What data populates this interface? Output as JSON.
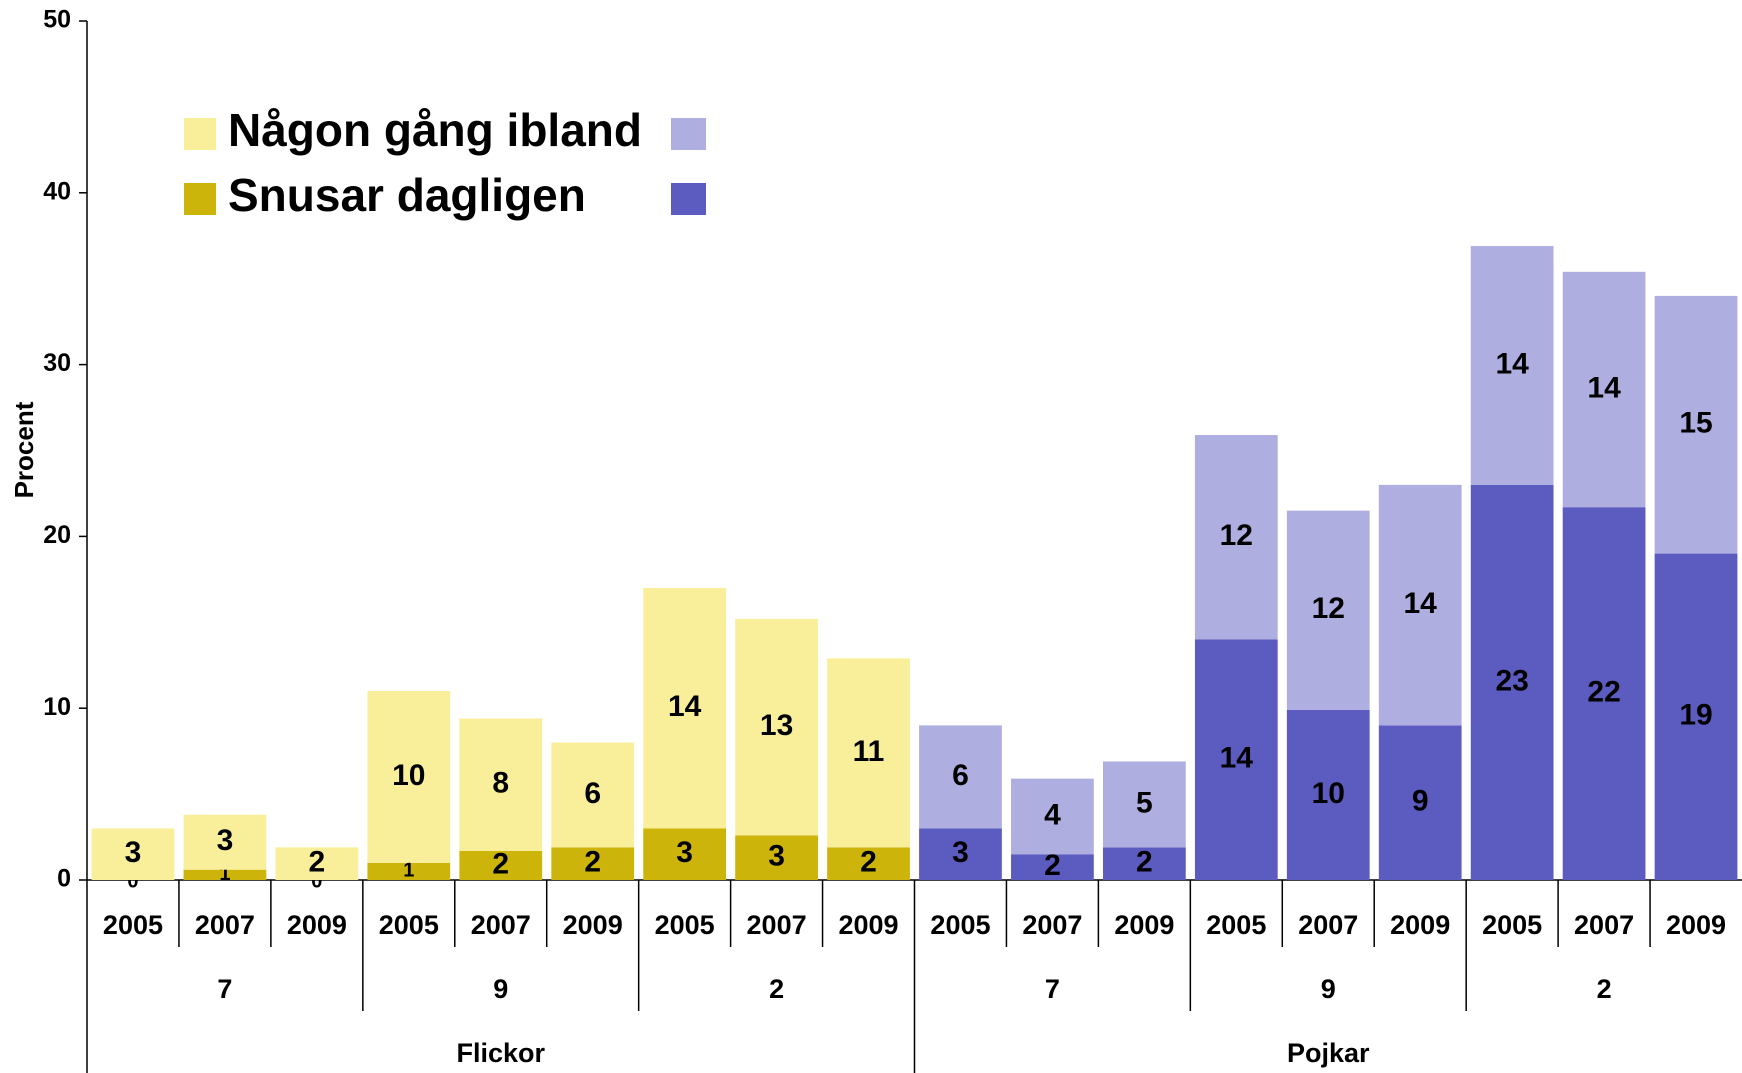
{
  "chart_data": {
    "type": "stacked_bar",
    "y_label": "Procent",
    "categories": [
      "2005",
      "2007",
      "2009",
      "2005",
      "2007",
      "2009",
      "2005",
      "2007",
      "2009",
      "2005",
      "2007",
      "2009",
      "2005",
      "2007",
      "2009",
      "2005",
      "2007",
      "2009"
    ],
    "grade_groups": [
      "7",
      "9",
      "2",
      "7",
      "9",
      "2"
    ],
    "sex_groups": [
      "Flickor",
      "Pojkar"
    ],
    "series": [
      {
        "name": "Snusar dagligen",
        "colors": [
          "#cdb40a",
          "#5b5bc0"
        ],
        "values": [
          0,
          0.6,
          0,
          1.0,
          1.7,
          1.9,
          3.0,
          2.6,
          1.9,
          3.0,
          1.5,
          1.9,
          14.0,
          9.9,
          9.0,
          23.0,
          21.7,
          19.0
        ],
        "value_labels": [
          "0",
          "1",
          "0",
          "1",
          "2",
          "2",
          "3",
          "3",
          "2",
          "3",
          "2",
          "2",
          "14",
          "10",
          "9",
          "23",
          "22",
          "19"
        ]
      },
      {
        "name": "Någon gång ibland",
        "colors": [
          "#f9ef9b",
          "#aeaee0"
        ],
        "values": [
          3.0,
          3.2,
          1.9,
          10.0,
          7.7,
          6.1,
          14.0,
          12.6,
          11.0,
          6.0,
          4.4,
          5.0,
          11.9,
          11.6,
          14.0,
          13.9,
          13.7,
          15.0
        ],
        "value_labels": [
          "3",
          "3",
          "2",
          "10",
          "8",
          "6",
          "14",
          "13",
          "11",
          "6",
          "4",
          "5",
          "12",
          "12",
          "14",
          "14",
          "14",
          "15"
        ]
      }
    ],
    "ylim": [
      0,
      50
    ],
    "yticks": [
      0,
      10,
      20,
      30,
      40,
      50
    ],
    "grid": false
  }
}
